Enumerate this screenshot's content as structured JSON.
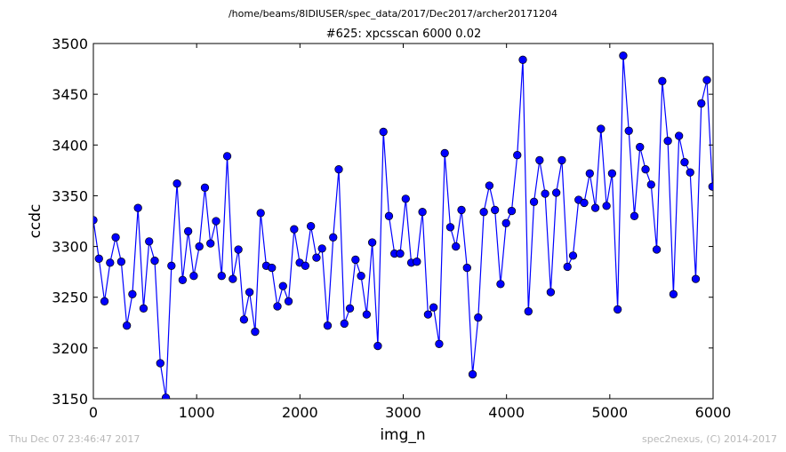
{
  "header": {
    "path": "/home/beams/8IDIUSER/spec_data/2017/Dec2017/archer20171204",
    "title": "#625: xpcsscan 6000 0.02"
  },
  "footer": {
    "timestamp": "Thu Dec 07 23:46:47 2017",
    "credit": "spec2nexus, (C) 2014-2017"
  },
  "colors": {
    "series": "#0000ff",
    "marker": "#0000ff",
    "marker_edge": "#000000"
  },
  "chart_data": {
    "type": "line",
    "xlabel": "img_n",
    "ylabel": "ccdc",
    "xlim": [
      0,
      6000
    ],
    "ylim": [
      3150,
      3500
    ],
    "xticks": [
      "0",
      "1000",
      "2000",
      "3000",
      "4000",
      "5000",
      "6000"
    ],
    "yticks": [
      "3150",
      "3200",
      "3250",
      "3300",
      "3350",
      "3400",
      "3450",
      "3500"
    ],
    "grid": false,
    "x": [
      0,
      54,
      108,
      162,
      216,
      270,
      324,
      378,
      432,
      486,
      540,
      594,
      648,
      702,
      756,
      810,
      864,
      918,
      972,
      1026,
      1080,
      1134,
      1188,
      1242,
      1296,
      1350,
      1404,
      1458,
      1512,
      1566,
      1620,
      1674,
      1728,
      1782,
      1836,
      1890,
      1944,
      1998,
      2052,
      2106,
      2160,
      2214,
      2268,
      2322,
      2376,
      2430,
      2484,
      2538,
      2592,
      2646,
      2700,
      2754,
      2808,
      2862,
      2916,
      2970,
      3024,
      3078,
      3132,
      3186,
      3240,
      3294,
      3348,
      3402,
      3456,
      3510,
      3564,
      3618,
      3672,
      3726,
      3780,
      3834,
      3888,
      3942,
      3996,
      4050,
      4104,
      4158,
      4212,
      4266,
      4320,
      4374,
      4428,
      4482,
      4536,
      4590,
      4644,
      4698,
      4752,
      4806,
      4860,
      4914,
      4968,
      5022,
      5076,
      5130,
      5184,
      5238,
      5292,
      5346,
      5400,
      5454,
      5508,
      5562,
      5616,
      5670,
      5724,
      5778,
      5832,
      5886,
      5940,
      5994
    ],
    "series": [
      {
        "values": [
          3326,
          3288,
          3246,
          3284,
          3309,
          3285,
          3222,
          3253,
          3338,
          3239,
          3305,
          3286,
          3185,
          3151,
          3281,
          3362,
          3267,
          3315,
          3271,
          3300,
          3358,
          3303,
          3325,
          3271,
          3389,
          3268,
          3297,
          3228,
          3255,
          3216,
          3333,
          3281,
          3279,
          3241,
          3261,
          3246,
          3317,
          3284,
          3281,
          3320,
          3289,
          3298,
          3222,
          3309,
          3376,
          3224,
          3239,
          3287,
          3271,
          3233,
          3304,
          3202,
          3413,
          3330,
          3293,
          3293,
          3347,
          3284,
          3285,
          3334,
          3233,
          3240,
          3204,
          3392,
          3319,
          3300,
          3336,
          3279,
          3174,
          3230,
          3334,
          3360,
          3336,
          3263,
          3323,
          3335,
          3390,
          3484,
          3236,
          3344,
          3385,
          3352,
          3255,
          3353,
          3385,
          3280,
          3291,
          3346,
          3343,
          3372,
          3338,
          3416,
          3340,
          3372,
          3238,
          3488,
          3414,
          3330,
          3398,
          3376,
          3361,
          3297,
          3463,
          3404,
          3253,
          3409,
          3383,
          3373,
          3268,
          3441,
          3464,
          3359
        ]
      }
    ]
  }
}
